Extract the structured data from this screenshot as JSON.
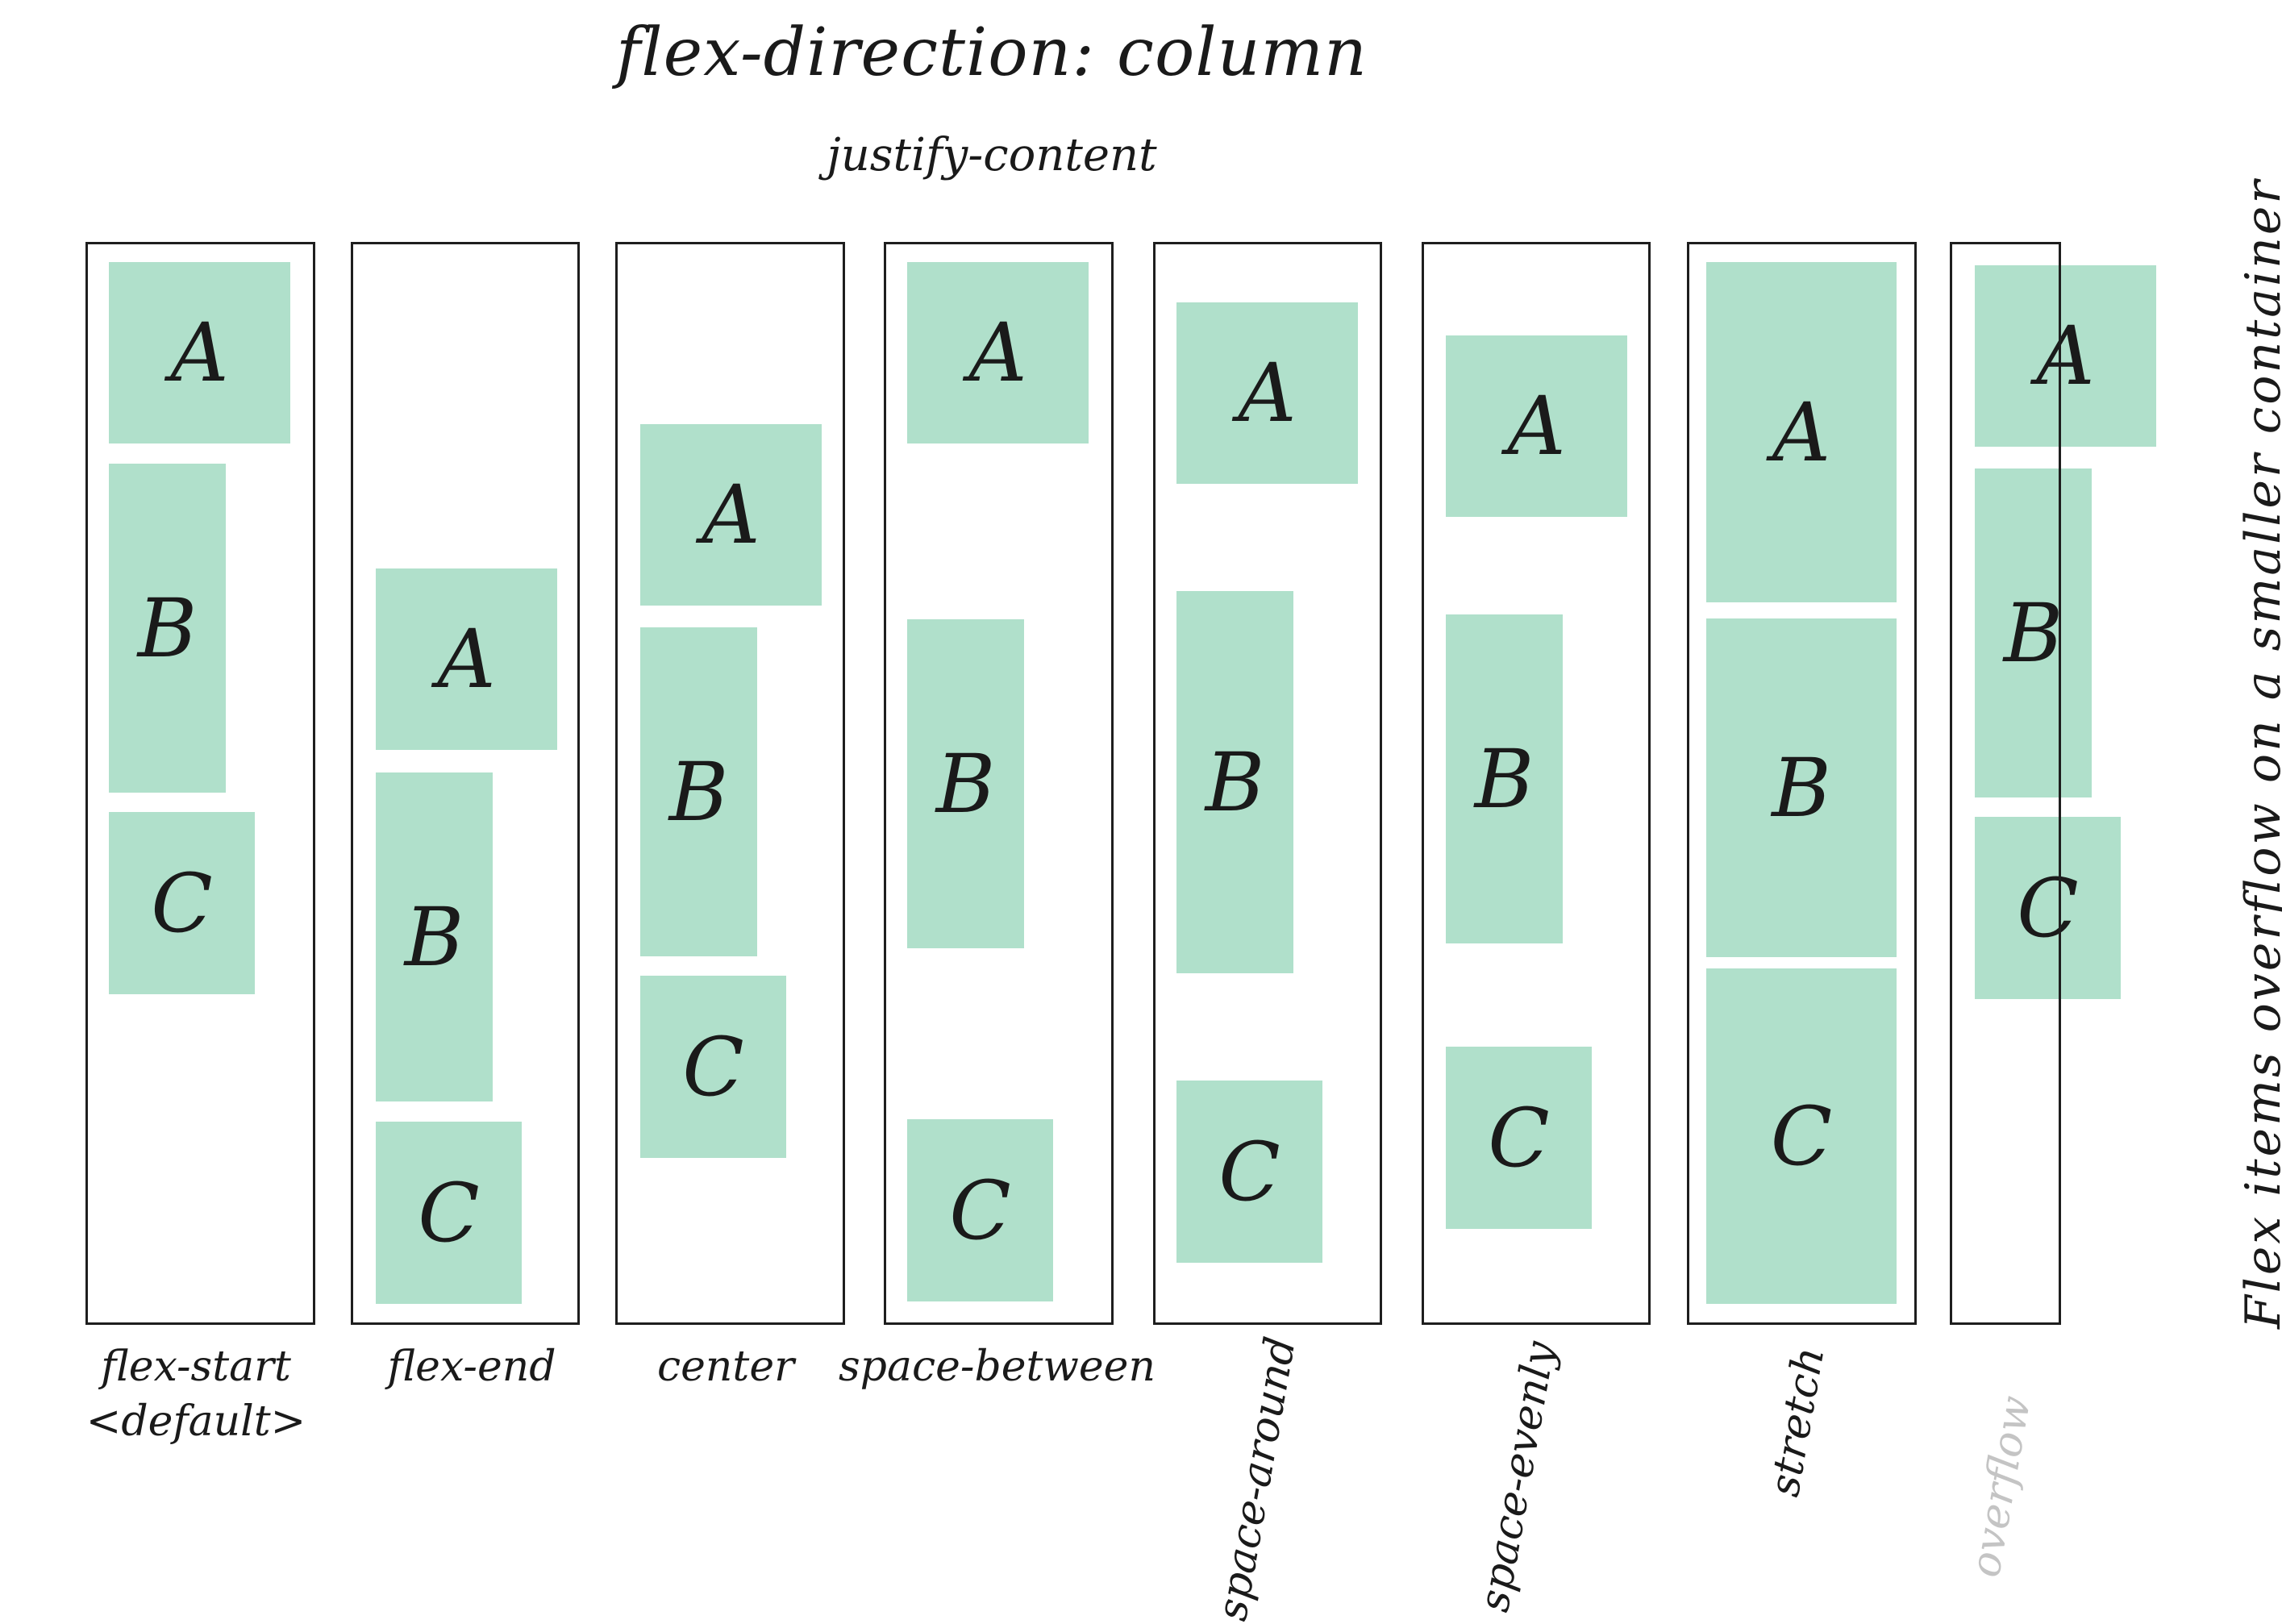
{
  "title": "flex-direction: column",
  "subtitle": "justify-content",
  "side_note": "Flex items overflow on a smaller container",
  "colors": {
    "item_fill": "#b0e0cb",
    "border": "#1e1e1e",
    "faded_label": "#c4c4c4"
  },
  "item_labels": {
    "a": "A",
    "b": "B",
    "c": "C"
  },
  "columns": [
    {
      "label_line1": "flex-start",
      "label_line2": "<default>"
    },
    {
      "label": "flex-end"
    },
    {
      "label": "center"
    },
    {
      "label": "space-between"
    },
    {
      "label": "space-around"
    },
    {
      "label": "space-evenly"
    },
    {
      "label": "stretch"
    },
    {
      "label": "overflow"
    }
  ]
}
